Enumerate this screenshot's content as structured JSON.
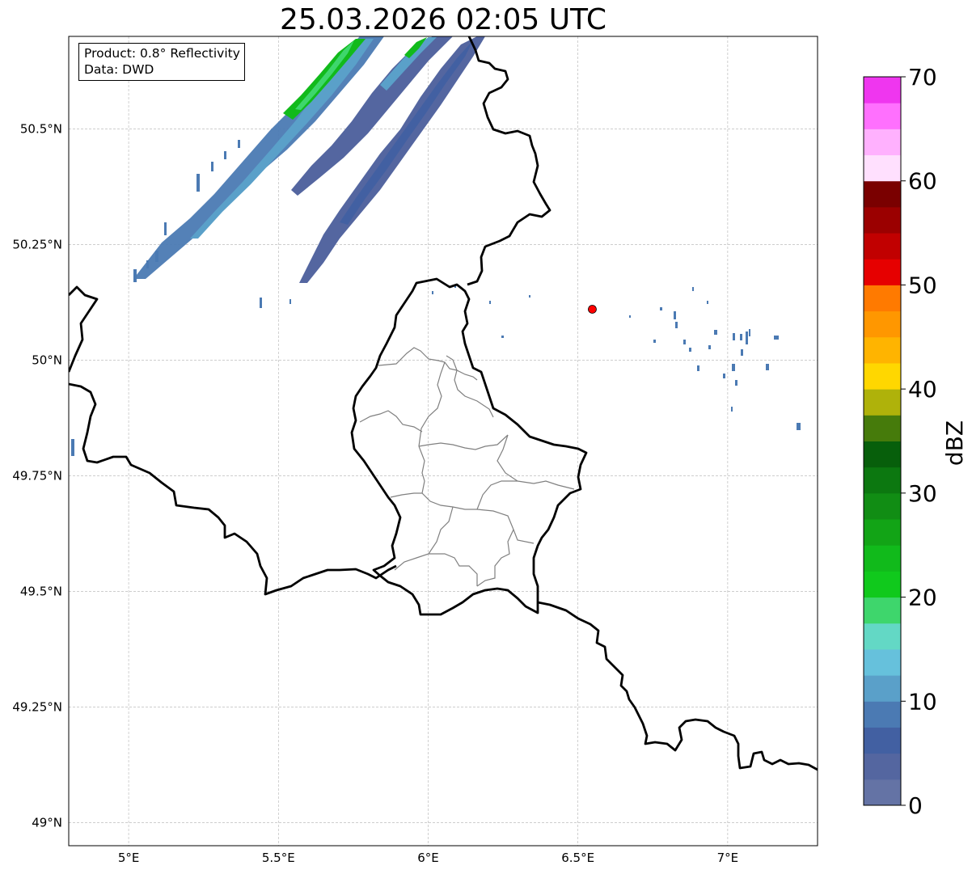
{
  "title": "25.03.2026 02:05 UTC",
  "info": {
    "product_line": "Product: 0.8° Reflectivity",
    "data_line": "Data: DWD"
  },
  "map": {
    "lon_range": [
      4.8,
      7.3
    ],
    "lat_range": [
      48.95,
      50.7
    ],
    "lon_ticks": [
      {
        "value": 5.0,
        "label": "5°E"
      },
      {
        "value": 5.5,
        "label": "5.5°E"
      },
      {
        "value": 6.0,
        "label": "6°E"
      },
      {
        "value": 6.5,
        "label": "6.5°E"
      },
      {
        "value": 7.0,
        "label": "7°E"
      }
    ],
    "lat_ticks": [
      {
        "value": 50.5,
        "label": "50.5°N"
      },
      {
        "value": 50.25,
        "label": "50.25°N"
      },
      {
        "value": 50.0,
        "label": "50°N"
      },
      {
        "value": 49.75,
        "label": "49.75°N"
      },
      {
        "value": 49.5,
        "label": "49.5°N"
      },
      {
        "value": 49.25,
        "label": "49.25°N"
      },
      {
        "value": 49.0,
        "label": "49°N"
      }
    ],
    "radar_site": {
      "lon": 6.548,
      "lat": 50.11,
      "color": "#ff0000"
    }
  },
  "colorbar": {
    "label": "dBZ",
    "min": 0,
    "max": 70,
    "tick_values": [
      0,
      10,
      20,
      30,
      40,
      50,
      60,
      70
    ],
    "tick_labels": [
      "0",
      "10",
      "20",
      "30",
      "40",
      "50",
      "60",
      "70"
    ],
    "colors": [
      "#6473a5",
      "#5466a0",
      "#4260a2",
      "#4b7ab3",
      "#5aa0c9",
      "#66c1dc",
      "#63d8c5",
      "#3ed66c",
      "#10c91c",
      "#11ba1b",
      "#12a416",
      "#118d14",
      "#0c7810",
      "#075f0b",
      "#467b0b",
      "#afb20a",
      "#ffd700",
      "#ffb400",
      "#ff9700",
      "#ff7a00",
      "#e60000",
      "#c10000",
      "#9b0000",
      "#7a0000",
      "#ffe0fe",
      "#ffb1fe",
      "#ff70fe",
      "#ef36ef"
    ]
  }
}
